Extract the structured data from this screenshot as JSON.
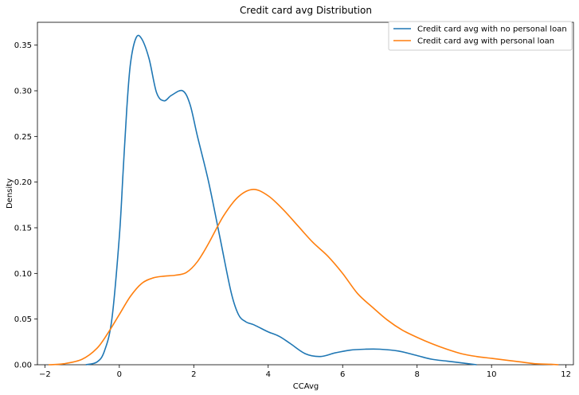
{
  "chart_data": {
    "type": "line",
    "title": "Credit card avg Distribution",
    "xlabel": "CCAvg",
    "ylabel": "Density",
    "xlim": [
      -2.2,
      12.2
    ],
    "ylim": [
      0,
      0.375
    ],
    "xticks": [
      -2,
      0,
      2,
      4,
      6,
      8,
      10,
      12
    ],
    "xtick_labels": [
      "−2",
      "0",
      "2",
      "4",
      "6",
      "8",
      "10",
      "12"
    ],
    "yticks": [
      0.0,
      0.05,
      0.1,
      0.15,
      0.2,
      0.25,
      0.3,
      0.35
    ],
    "ytick_labels": [
      "0.00",
      "0.05",
      "0.10",
      "0.15",
      "0.20",
      "0.25",
      "0.30",
      "0.35"
    ],
    "grid": false,
    "legend_position": "top-right",
    "series": [
      {
        "name": "Credit card avg with no personal loan",
        "color": "#1f77b4",
        "x": [
          -0.9,
          -0.6,
          -0.4,
          -0.2,
          0.0,
          0.1,
          0.2,
          0.3,
          0.45,
          0.6,
          0.8,
          1.0,
          1.2,
          1.4,
          1.7,
          1.9,
          2.1,
          2.4,
          2.7,
          3.0,
          3.2,
          3.4,
          3.6,
          3.8,
          4.0,
          4.3,
          4.6,
          5.0,
          5.4,
          5.8,
          6.2,
          6.6,
          7.0,
          7.5,
          8.0,
          8.4,
          8.8,
          9.2,
          9.6
        ],
        "y": [
          0.0,
          0.003,
          0.015,
          0.05,
          0.14,
          0.21,
          0.28,
          0.33,
          0.358,
          0.357,
          0.335,
          0.298,
          0.289,
          0.295,
          0.3,
          0.285,
          0.25,
          0.2,
          0.14,
          0.08,
          0.055,
          0.047,
          0.044,
          0.04,
          0.036,
          0.031,
          0.023,
          0.012,
          0.009,
          0.013,
          0.016,
          0.017,
          0.017,
          0.015,
          0.01,
          0.006,
          0.004,
          0.002,
          0.0
        ]
      },
      {
        "name": "Credit card avg with personal loan",
        "color": "#ff7f0e",
        "x": [
          -1.9,
          -1.5,
          -1.0,
          -0.6,
          -0.3,
          0.0,
          0.3,
          0.6,
          0.9,
          1.2,
          1.5,
          1.8,
          2.1,
          2.4,
          2.8,
          3.2,
          3.6,
          4.0,
          4.4,
          4.8,
          5.2,
          5.6,
          6.0,
          6.4,
          6.8,
          7.2,
          7.6,
          8.0,
          8.4,
          8.8,
          9.2,
          9.6,
          10.0,
          10.4,
          10.8,
          11.2,
          11.6,
          11.8
        ],
        "y": [
          0.0,
          0.001,
          0.006,
          0.018,
          0.035,
          0.055,
          0.075,
          0.089,
          0.095,
          0.097,
          0.098,
          0.101,
          0.113,
          0.133,
          0.163,
          0.184,
          0.192,
          0.185,
          0.17,
          0.152,
          0.134,
          0.119,
          0.1,
          0.078,
          0.063,
          0.049,
          0.038,
          0.03,
          0.023,
          0.017,
          0.012,
          0.009,
          0.007,
          0.005,
          0.003,
          0.001,
          0.0005,
          0.0
        ]
      }
    ]
  }
}
